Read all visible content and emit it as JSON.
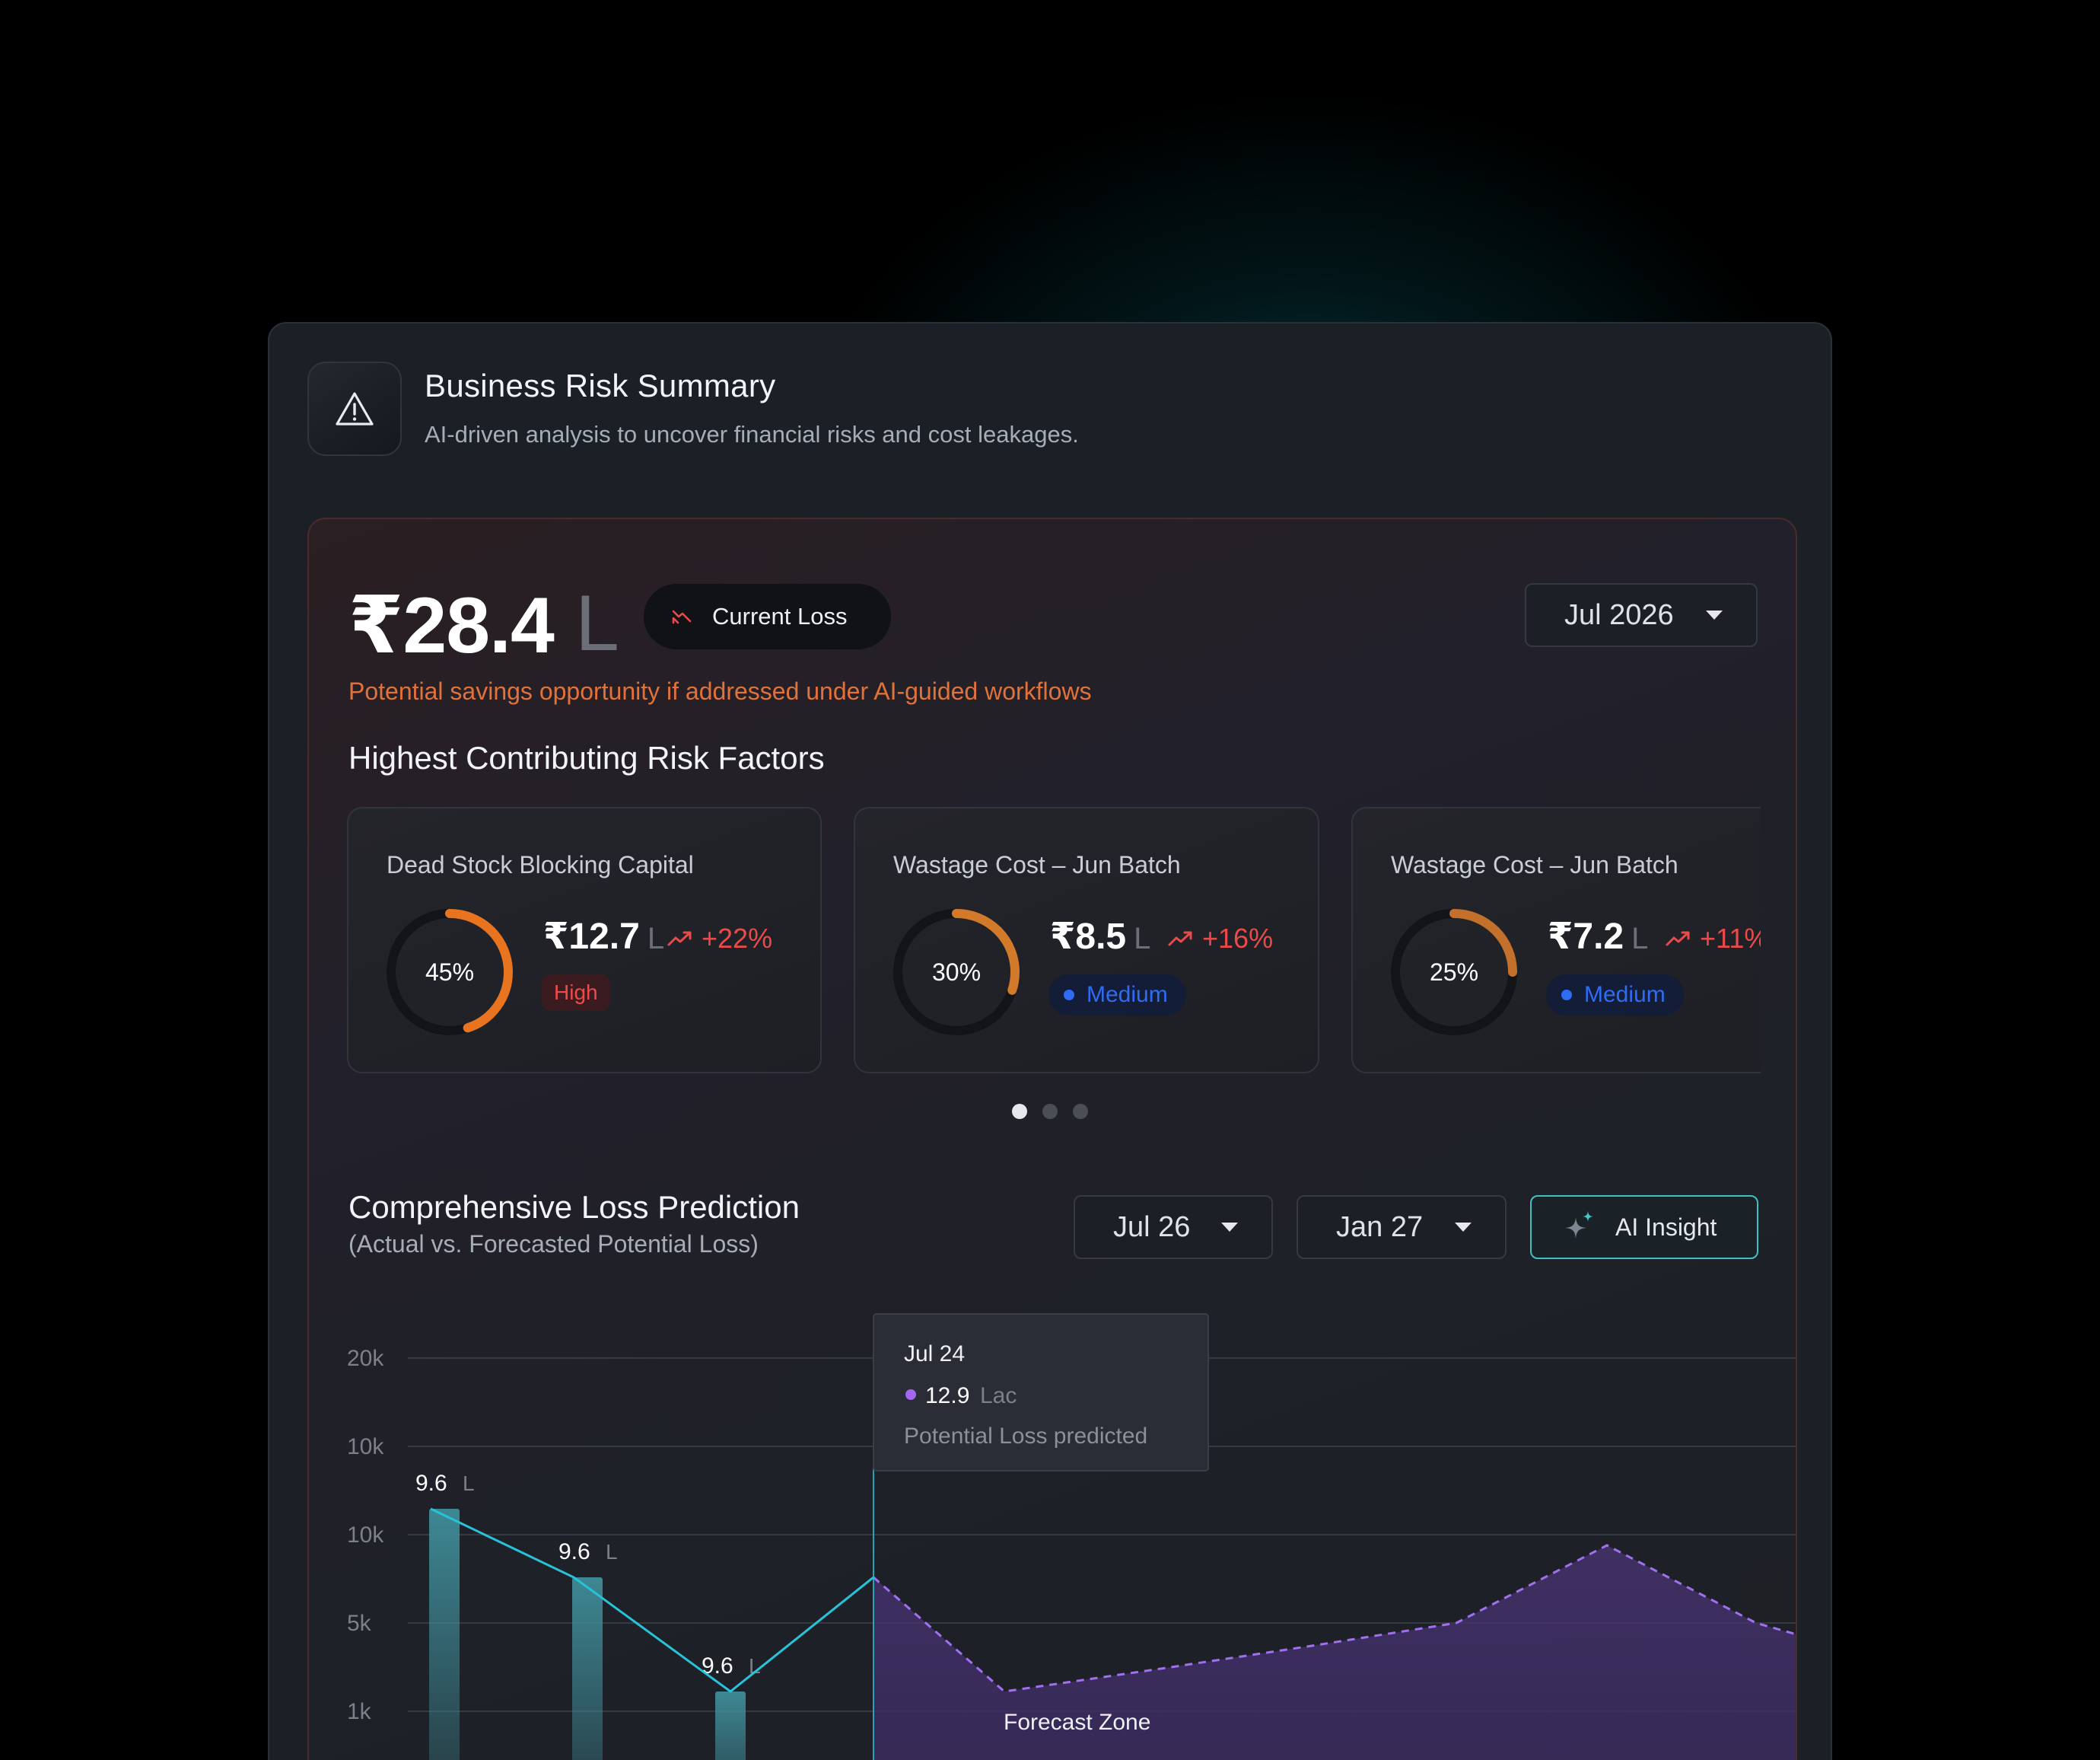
{
  "header": {
    "icon": "warning-triangle-icon",
    "title": "Business Risk Summary",
    "subtitle": "AI-driven analysis to uncover financial risks and cost leakages."
  },
  "summary": {
    "amount": "₹28.4",
    "unit": "L",
    "pill_label": "Current Loss",
    "pill_icon": "trend-down-icon",
    "month": "Jul 2026",
    "savings_note": "Potential savings opportunity if addressed under AI-guided workflows"
  },
  "risk_section_title": "Highest Contributing Risk Factors",
  "risk_factors": [
    {
      "title": "Dead Stock Blocking Capital",
      "percent": "45%",
      "percent_value": 45,
      "amount": "₹12.7",
      "unit": "L",
      "trend": "+22%",
      "level": "High",
      "ring_color": "#e8741f"
    },
    {
      "title": "Wastage Cost – Jun Batch",
      "percent": "30%",
      "percent_value": 30,
      "amount": "₹8.5",
      "unit": "L",
      "trend": "+16%",
      "level": "Medium",
      "ring_color": "#d27a2a"
    },
    {
      "title": "Wastage Cost – Jun Batch",
      "percent": "25%",
      "percent_value": 25,
      "amount": "₹7.2",
      "unit": "L",
      "trend": "+11%",
      "level": "Medium",
      "ring_color": "#c2702b"
    }
  ],
  "carousel": {
    "pages": 3,
    "active": 0
  },
  "prediction": {
    "title": "Comprehensive Loss Prediction",
    "subtitle": "(Actual vs. Forecasted Potential Loss)",
    "from": "Jul 26",
    "to": "Jan 27",
    "ai_button": "AI Insight",
    "ai_icon": "sparkle-icon"
  },
  "chart_data": {
    "type": "bar",
    "y_tick_labels": [
      "20k",
      "10k",
      "10k",
      "5k",
      "1k"
    ],
    "bars": [
      {
        "label": "9.6",
        "unit": "L",
        "level": 0.7
      },
      {
        "label": "9.6",
        "unit": "L",
        "level": 0.55
      },
      {
        "label": "9.6",
        "unit": "L",
        "level": 0.3
      }
    ],
    "actual_line_levels": [
      0.7,
      0.55,
      0.3,
      0.55
    ],
    "forecast_levels": [
      0.55,
      0.3,
      0.35,
      0.4,
      0.45,
      0.62,
      0.45,
      0.4
    ],
    "tooltip": {
      "date": "Jul 24",
      "value": "12.9",
      "unit": "Lac",
      "note": "Potential Loss predicted"
    },
    "forecast_label": "Forecast Zone",
    "colors": {
      "actual_line": "#27c3d8",
      "forecast": "#a070f0",
      "bar": "#3f8d99",
      "forecast_dot": "#a566f2"
    }
  }
}
